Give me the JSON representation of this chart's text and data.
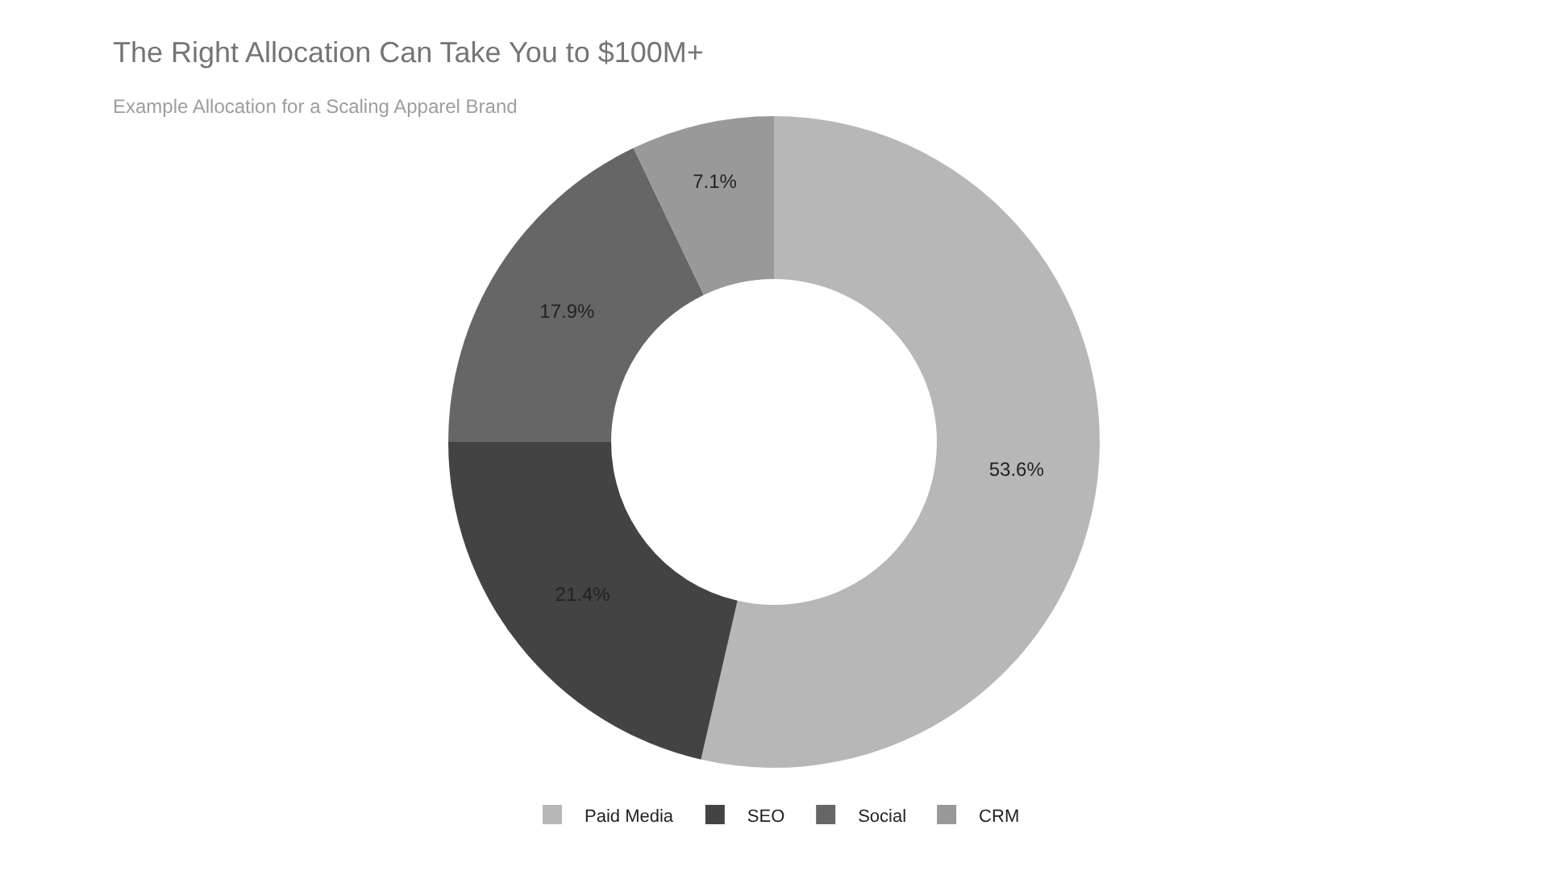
{
  "chart_data": {
    "type": "donut",
    "title": "The Right Allocation Can Take You to $100M+",
    "subtitle": "Example Allocation for a Scaling Apparel Brand",
    "categories": [
      "Paid Media",
      "SEO",
      "Social",
      "CRM"
    ],
    "values": [
      53.6,
      21.4,
      17.9,
      7.1
    ],
    "colors": [
      "#b7b7b7",
      "#434343",
      "#666666",
      "#999999"
    ],
    "value_labels": [
      "53.6%",
      "21.4%",
      "17.9%",
      "7.1%"
    ],
    "legend": "bottom"
  }
}
